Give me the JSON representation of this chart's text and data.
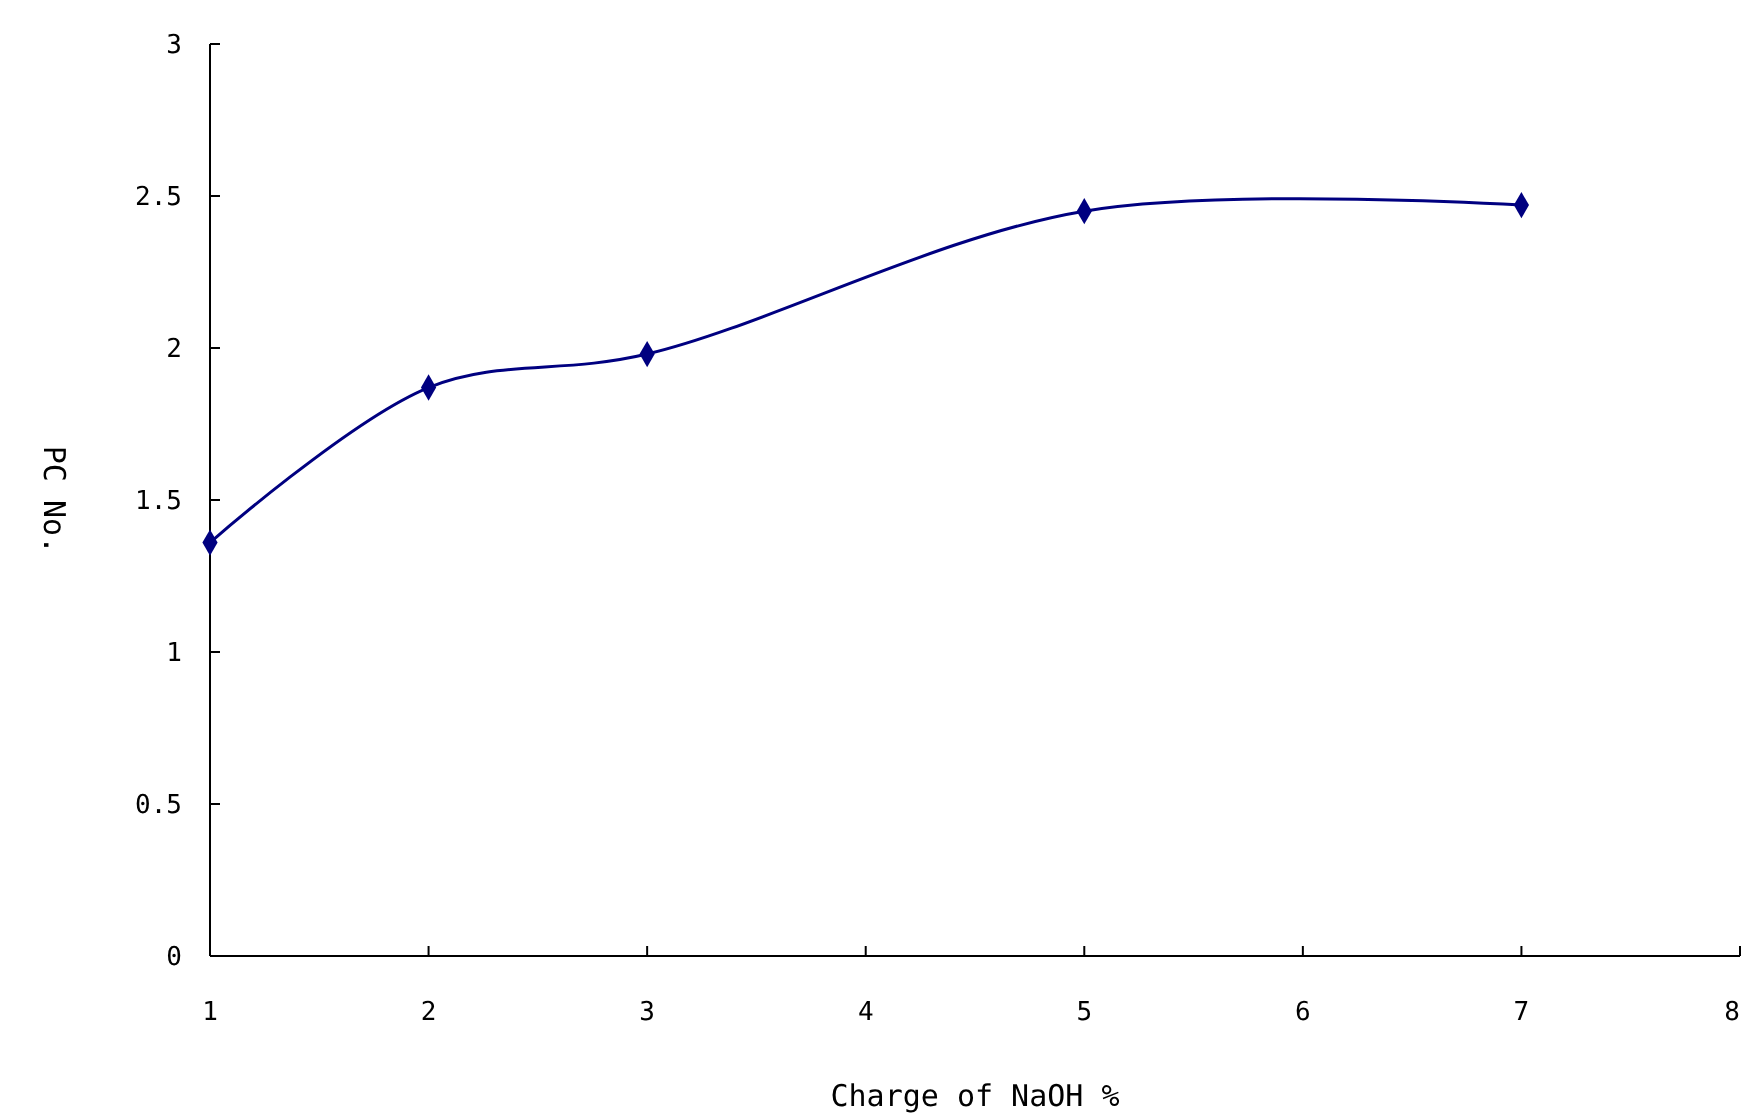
{
  "chart_data": {
    "type": "line",
    "xlabel": "Charge of NaOH %",
    "ylabel": "PC No.",
    "x": [
      1,
      2,
      3,
      5,
      7
    ],
    "series": [
      {
        "color": "#000080",
        "values": [
          1.36,
          1.87,
          1.98,
          2.45,
          2.47
        ]
      }
    ],
    "xlim": [
      1,
      8
    ],
    "xticks": [
      1,
      2,
      3,
      4,
      5,
      6,
      7,
      8
    ],
    "ylim": [
      0,
      3
    ],
    "yticks": [
      0,
      0.5,
      1,
      1.5,
      2,
      2.5,
      3
    ],
    "grid": false,
    "marker": "diamond",
    "line_style": "solid"
  }
}
